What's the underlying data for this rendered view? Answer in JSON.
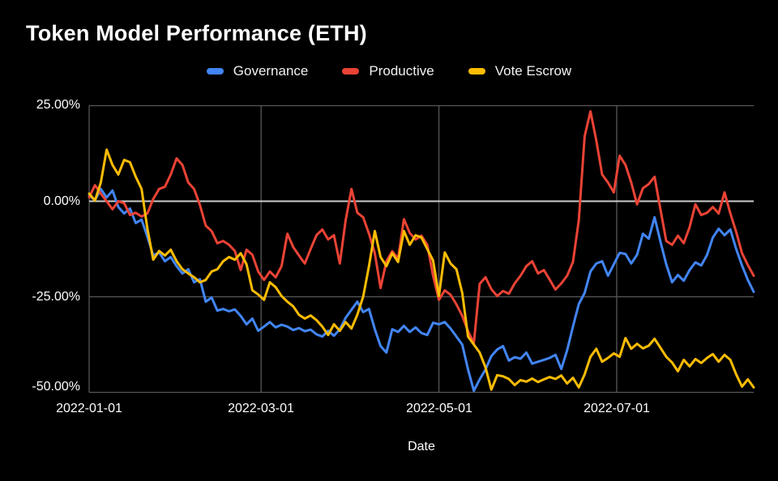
{
  "title": "Token Model Performance (ETH)",
  "x_axis": {
    "label": "Date",
    "ticks": [
      "2022-01-01",
      "2022-03-01",
      "2022-05-01",
      "2022-07-01"
    ]
  },
  "y_axis": {
    "ticks": [
      "25.00%",
      "0.00%",
      "-25.00%",
      "-50.00%"
    ]
  },
  "colors": {
    "background": "#000000",
    "text": "#ffffff",
    "gridline": "#575757",
    "zero_gridline": "#cccccc",
    "governance_blue": "#4285F4",
    "productive_red": "#EA4335",
    "vote_escrow_yellow": "#FBBC04"
  },
  "chart_data": {
    "type": "line",
    "title": "Token Model Performance (ETH)",
    "xlabel": "Date",
    "ylabel": "",
    "unit": "percent return",
    "ylim": [
      -50,
      25
    ],
    "y_tick_values": [
      25,
      0,
      -25,
      -50
    ],
    "x_start": "2022-01-01",
    "x_end": "2022-08-17",
    "x_tick_labels": [
      "2022-01-01",
      "2022-03-01",
      "2022-05-01",
      "2022-07-01"
    ],
    "x_tick_days": [
      0,
      59,
      120,
      181
    ],
    "point_interval_days": 2,
    "legend_position": "top",
    "grid": true,
    "series": [
      {
        "name": "Governance",
        "color": "#4285F4",
        "values": [
          1.5,
          0.3,
          3.2,
          1.0,
          2.8,
          -1.5,
          -3.2,
          -1.9,
          -5.7,
          -4.8,
          -9.3,
          -14.2,
          -13.4,
          -15.7,
          -14.6,
          -17.0,
          -18.9,
          -17.8,
          -21.2,
          -20.4,
          -26.3,
          -25.2,
          -28.6,
          -28.2,
          -28.8,
          -28.3,
          -30.0,
          -32.2,
          -30.7,
          -33.9,
          -32.8,
          -31.6,
          -33.0,
          -32.3,
          -32.8,
          -33.7,
          -33.2,
          -34.0,
          -33.6,
          -34.8,
          -35.4,
          -33.9,
          -35.2,
          -33.5,
          -30.5,
          -28.4,
          -26.3,
          -29.0,
          -28.2,
          -33.5,
          -37.9,
          -39.6,
          -33.5,
          -34.2,
          -32.6,
          -34.2,
          -33.0,
          -34.5,
          -35.0,
          -31.8,
          -32.2,
          -31.6,
          -33.3,
          -35.4,
          -37.5,
          -44.0,
          -49.6,
          -46.6,
          -44.0,
          -40.5,
          -38.8,
          -37.9,
          -41.7,
          -40.8,
          -41.2,
          -39.6,
          -42.5,
          -42.0,
          -41.5,
          -41.0,
          -40.2,
          -43.9,
          -39.0,
          -32.8,
          -26.9,
          -24.0,
          -18.4,
          -16.3,
          -15.7,
          -19.5,
          -16.5,
          -13.5,
          -13.8,
          -16.3,
          -14.0,
          -8.5,
          -9.8,
          -4.2,
          -10.5,
          -16.5,
          -21.2,
          -19.3,
          -20.8,
          -18.0,
          -16.0,
          -16.8,
          -14.0,
          -9.5,
          -7.2,
          -8.9,
          -7.4,
          -12.5,
          -16.8,
          -20.6,
          -23.7
        ]
      },
      {
        "name": "Productive",
        "color": "#EA4335",
        "values": [
          1.0,
          4.2,
          2.0,
          0.0,
          -2.1,
          0.0,
          -0.5,
          -3.6,
          -3.0,
          -4.0,
          -3.2,
          0.6,
          3.2,
          3.8,
          7.0,
          11.2,
          9.5,
          4.9,
          3.2,
          -1.0,
          -6.4,
          -7.8,
          -11.0,
          -10.4,
          -11.4,
          -13.0,
          -18.0,
          -12.7,
          -14.0,
          -18.4,
          -20.6,
          -18.4,
          -19.9,
          -17.0,
          -8.5,
          -12.0,
          -14.2,
          -16.3,
          -12.5,
          -8.9,
          -7.4,
          -10.0,
          -8.9,
          -16.3,
          -5.0,
          3.2,
          -3.0,
          -4.2,
          -8.5,
          -13.6,
          -22.7,
          -15.7,
          -13.1,
          -15.0,
          -4.7,
          -8.3,
          -10.0,
          -9.0,
          -11.4,
          -19.5,
          -25.8,
          -23.3,
          -24.5,
          -27.0,
          -30.0,
          -34.0,
          -37.1,
          -21.6,
          -19.9,
          -23.0,
          -24.8,
          -23.5,
          -24.2,
          -21.5,
          -19.5,
          -17.0,
          -15.7,
          -18.9,
          -18.0,
          -20.5,
          -23.1,
          -21.5,
          -19.5,
          -15.9,
          -5.0,
          17.0,
          23.5,
          15.9,
          7.0,
          4.9,
          2.3,
          11.9,
          9.5,
          4.9,
          -0.8,
          3.4,
          4.5,
          6.4,
          -2.1,
          -10.4,
          -11.4,
          -9.0,
          -11.0,
          -6.8,
          -0.8,
          -3.6,
          -3.0,
          -1.5,
          -3.2,
          2.3,
          -3.2,
          -8.0,
          -13.6,
          -16.7,
          -19.5
        ]
      },
      {
        "name": "Vote Escrow",
        "color": "#FBBC04",
        "values": [
          2.0,
          0.2,
          4.9,
          13.5,
          9.5,
          7.0,
          10.8,
          10.2,
          6.4,
          3.2,
          -7.2,
          -15.3,
          -13.0,
          -14.2,
          -12.7,
          -15.7,
          -17.8,
          -18.9,
          -19.9,
          -21.2,
          -20.6,
          -18.4,
          -17.8,
          -15.7,
          -14.6,
          -15.3,
          -13.6,
          -16.5,
          -23.3,
          -24.4,
          -25.8,
          -21.2,
          -22.5,
          -24.8,
          -26.3,
          -27.5,
          -29.7,
          -30.7,
          -29.9,
          -31.1,
          -32.8,
          -35.0,
          -32.2,
          -33.9,
          -31.6,
          -33.3,
          -29.7,
          -25.0,
          -17.0,
          -7.8,
          -14.6,
          -17.0,
          -13.6,
          -15.9,
          -7.8,
          -11.4,
          -8.9,
          -9.5,
          -12.5,
          -15.5,
          -24.8,
          -13.4,
          -16.3,
          -17.8,
          -24.0,
          -35.4,
          -37.5,
          -39.6,
          -43.5,
          -49.3,
          -45.5,
          -45.8,
          -46.5,
          -48.1,
          -46.8,
          -47.2,
          -46.4,
          -47.3,
          -46.6,
          -46.0,
          -46.5,
          -45.6,
          -47.7,
          -46.2,
          -48.7,
          -45.3,
          -40.7,
          -38.6,
          -42.0,
          -41.0,
          -39.8,
          -40.7,
          -35.8,
          -38.6,
          -37.3,
          -38.5,
          -37.8,
          -36.0,
          -38.3,
          -40.7,
          -42.2,
          -44.5,
          -41.5,
          -43.2,
          -41.3,
          -42.3,
          -41.0,
          -40.0,
          -42.0,
          -40.2,
          -41.5,
          -45.3,
          -48.5,
          -46.6,
          -48.7
        ]
      }
    ]
  }
}
